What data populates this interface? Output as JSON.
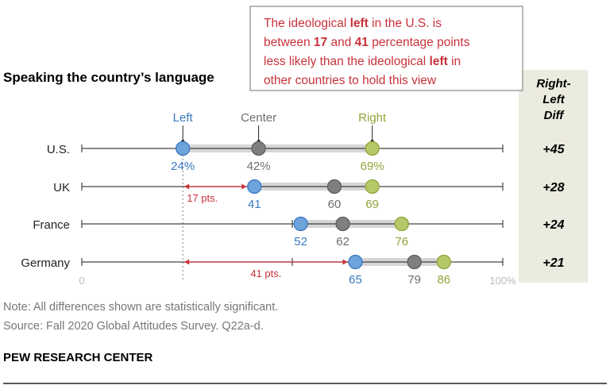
{
  "chart_data": {
    "type": "dot",
    "title": "Speaking the country’s language",
    "categories": [
      "U.S.",
      "UK",
      "France",
      "Germany"
    ],
    "series": [
      {
        "name": "Left",
        "values": [
          24,
          41,
          52,
          65
        ],
        "labels": [
          "24%",
          "41",
          "52",
          "65"
        ],
        "color": "#6fa3dc",
        "stroke": "#3a78c2",
        "text_color": "#3a78c2"
      },
      {
        "name": "Center",
        "values": [
          42,
          60,
          62,
          79
        ],
        "labels": [
          "42%",
          "60",
          "62",
          "79"
        ],
        "color": "#7f7f7f",
        "stroke": "#5e5e5e",
        "text_color": "#6e6e6e"
      },
      {
        "name": "Right",
        "values": [
          69,
          69,
          76,
          86
        ],
        "labels": [
          "69%",
          "69",
          "76",
          "86"
        ],
        "color": "#b5c96a",
        "stroke": "#8fa63a",
        "text_color": "#8fa63a"
      }
    ],
    "diff_header": [
      "Right-",
      "Left",
      "Diff"
    ],
    "diff_values": [
      "+45",
      "+28",
      "+24",
      "+21"
    ],
    "xlim": [
      0,
      100
    ],
    "x_tick_labels": [
      "0",
      "100%"
    ],
    "gaps": [
      {
        "row": "UK",
        "from": 24,
        "to": 41,
        "label": "17 pts."
      },
      {
        "row": "Germany",
        "from": 24,
        "to": 65,
        "label": "41 pts."
      }
    ],
    "annotation": [
      {
        "text": "The ideological ",
        "bold": false
      },
      {
        "text": "left",
        "bold": true
      },
      {
        "text": " in the U.S. is",
        "bold": false,
        "br": true
      },
      {
        "text": "between ",
        "bold": false
      },
      {
        "text": "17",
        "bold": true
      },
      {
        "text": " and ",
        "bold": false
      },
      {
        "text": "41",
        "bold": true
      },
      {
        "text": " percentage points",
        "bold": false,
        "br": true
      },
      {
        "text": "less likely than the ideological ",
        "bold": false
      },
      {
        "text": "left",
        "bold": true
      },
      {
        "text": " in",
        "bold": false,
        "br": true
      },
      {
        "text": "other countries to hold this view",
        "bold": false
      }
    ],
    "accent_color": "#c8323a",
    "diff_bg": "#ecebdf"
  },
  "footer": {
    "note": "Note: All differences shown are statistically significant.",
    "source": "Source: Fall 2020 Global Attitudes Survey. Q22a-d.",
    "brand": "PEW RESEARCH CENTER"
  }
}
